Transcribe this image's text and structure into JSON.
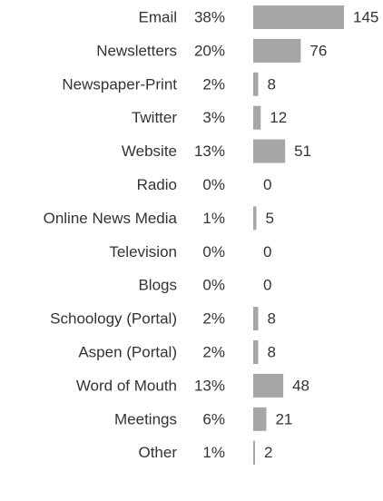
{
  "chart_data": {
    "type": "bar",
    "orientation": "horizontal",
    "categories": [
      "Email",
      "Newsletters",
      "Newspaper-Print",
      "Twitter",
      "Website",
      "Radio",
      "Online News Media",
      "Television",
      "Blogs",
      "Schoology (Portal)",
      "Aspen (Portal)",
      "Word of Mouth",
      "Meetings",
      "Other"
    ],
    "percent_labels": [
      "38%",
      "20%",
      "2%",
      "3%",
      "13%",
      "0%",
      "1%",
      "0%",
      "0%",
      "2%",
      "2%",
      "13%",
      "6%",
      "1%"
    ],
    "values": [
      145,
      76,
      8,
      12,
      51,
      0,
      5,
      0,
      0,
      8,
      8,
      48,
      21,
      2
    ],
    "bar_color": "#a6a6a6",
    "text_color": "#333333"
  }
}
